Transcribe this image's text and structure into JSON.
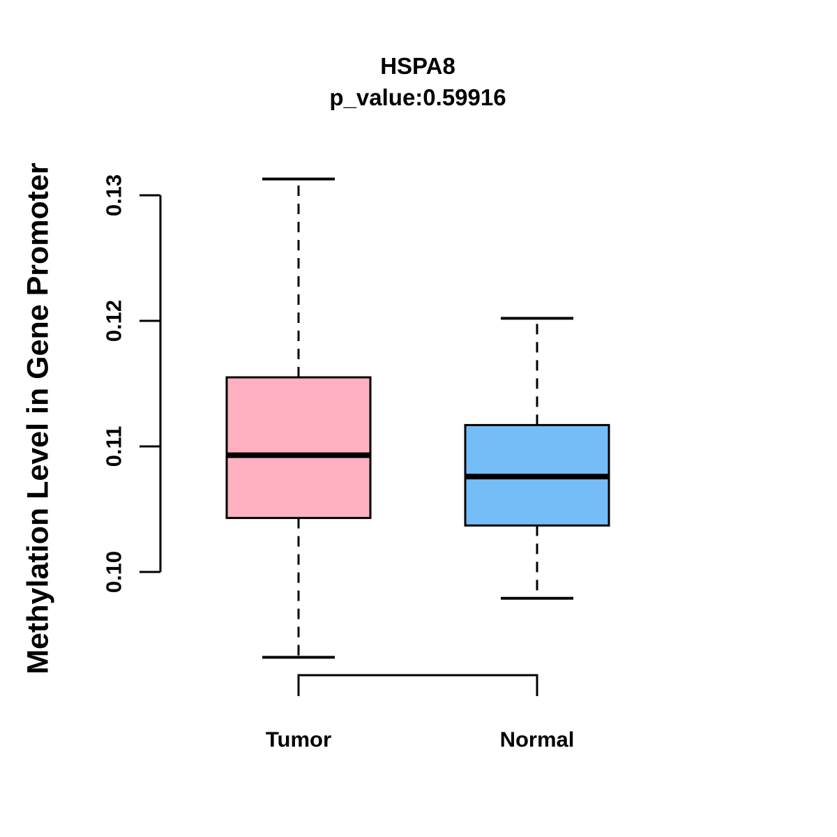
{
  "chart_data": {
    "type": "boxplot",
    "title": "HSPA8",
    "subtitle": "p_value:0.59916",
    "ylabel": "Methylation Level in Gene Promoter",
    "categories": [
      "Tumor",
      "Normal"
    ],
    "y_ticks": [
      {
        "label": "0.10",
        "value": 0.1
      },
      {
        "label": "0.11",
        "value": 0.11
      },
      {
        "label": "0.12",
        "value": 0.12
      },
      {
        "label": "0.13",
        "value": 0.13
      }
    ],
    "ylim": [
      0.0905,
      0.1325
    ],
    "grid": false,
    "legend": "none",
    "series": [
      {
        "name": "Tumor",
        "color": "#FFB0C1",
        "whisker_low": 0.0932,
        "q1": 0.1043,
        "median": 0.1093,
        "q3": 0.1155,
        "whisker_high": 0.1313
      },
      {
        "name": "Normal",
        "color": "#74BDF7",
        "whisker_low": 0.0979,
        "q1": 0.1037,
        "median": 0.1076,
        "q3": 0.1117,
        "whisker_high": 0.1202
      }
    ],
    "border_color": "#000000",
    "background": "#FFFFFF"
  }
}
